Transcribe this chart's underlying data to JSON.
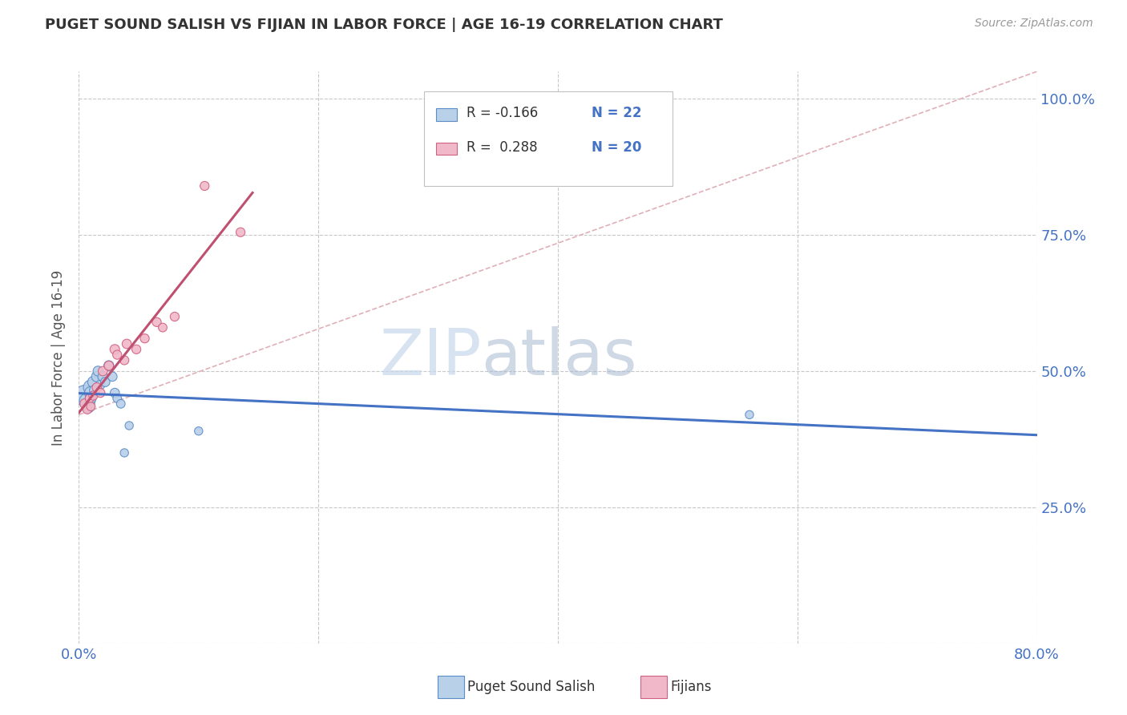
{
  "title": "PUGET SOUND SALISH VS FIJIAN IN LABOR FORCE | AGE 16-19 CORRELATION CHART",
  "source": "Source: ZipAtlas.com",
  "ylabel": "In Labor Force | Age 16-19",
  "xlim": [
    0.0,
    0.8
  ],
  "ylim": [
    0.0,
    1.05
  ],
  "xticks": [
    0.0,
    0.2,
    0.4,
    0.6,
    0.8
  ],
  "xtick_labels": [
    "0.0%",
    "",
    "",
    "",
    "80.0%"
  ],
  "yticks": [
    0.0,
    0.25,
    0.5,
    0.75,
    1.0
  ],
  "ytick_labels_right": [
    "",
    "25.0%",
    "50.0%",
    "75.0%",
    "100.0%"
  ],
  "background_color": "#ffffff",
  "grid_color": "#c8c8c8",
  "blue_R": -0.166,
  "blue_N": 22,
  "pink_R": 0.288,
  "pink_N": 20,
  "blue_fill": "#b8d0e8",
  "blue_edge": "#5b8dc8",
  "pink_fill": "#f0b8c8",
  "pink_edge": "#d06080",
  "blue_line": "#4472c4",
  "pink_line": "#c05070",
  "ref_line_color": "#e0b0b8",
  "blue_x": [
    0.005,
    0.007,
    0.008,
    0.01,
    0.01,
    0.01,
    0.012,
    0.013,
    0.015,
    0.016,
    0.018,
    0.02,
    0.022,
    0.025,
    0.028,
    0.03,
    0.032,
    0.035,
    0.038,
    0.042,
    0.1,
    0.56
  ],
  "blue_y": [
    0.455,
    0.445,
    0.435,
    0.47,
    0.46,
    0.45,
    0.48,
    0.465,
    0.49,
    0.5,
    0.475,
    0.49,
    0.48,
    0.51,
    0.49,
    0.46,
    0.45,
    0.44,
    0.35,
    0.4,
    0.39,
    0.42
  ],
  "blue_sizes": [
    350,
    200,
    120,
    180,
    130,
    90,
    100,
    80,
    90,
    80,
    70,
    80,
    70,
    80,
    70,
    70,
    60,
    60,
    55,
    55,
    55,
    55
  ],
  "pink_x": [
    0.005,
    0.007,
    0.009,
    0.01,
    0.012,
    0.015,
    0.018,
    0.02,
    0.025,
    0.03,
    0.032,
    0.038,
    0.04,
    0.048,
    0.055,
    0.065,
    0.07,
    0.08,
    0.105,
    0.135
  ],
  "pink_y": [
    0.44,
    0.43,
    0.45,
    0.435,
    0.455,
    0.47,
    0.46,
    0.5,
    0.51,
    0.54,
    0.53,
    0.52,
    0.55,
    0.54,
    0.56,
    0.59,
    0.58,
    0.6,
    0.84,
    0.755
  ],
  "pink_sizes": [
    80,
    70,
    65,
    60,
    65,
    70,
    65,
    70,
    70,
    75,
    65,
    65,
    70,
    65,
    65,
    65,
    60,
    65,
    65,
    65
  ],
  "legend_label_blue": "Puget Sound Salish",
  "legend_label_pink": "Fijians"
}
